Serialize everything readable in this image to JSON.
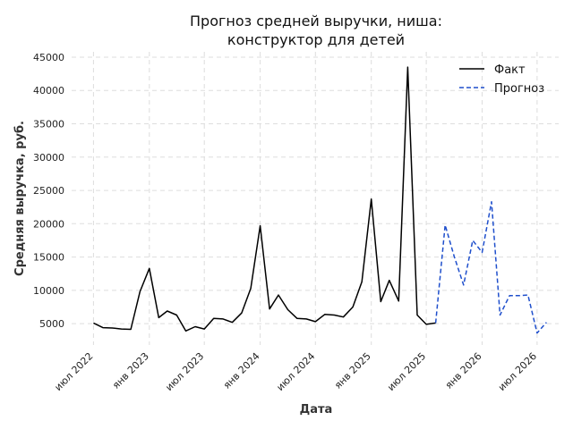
{
  "chart_data": {
    "type": "line",
    "title_line1": "Прогноз средней выручки, ниша:",
    "title_line2": "конструктор для детей",
    "xlabel": "Дата",
    "ylabel": "Средняя выручка, руб.",
    "xlim": [
      "2022-04-20",
      "2026-09-10"
    ],
    "ylim": [
      1800,
      45800
    ],
    "y_ticks": [
      5000,
      10000,
      15000,
      20000,
      25000,
      30000,
      35000,
      40000,
      45000
    ],
    "y_tick_labels": [
      "5000",
      "10000",
      "15000",
      "20000",
      "25000",
      "30000",
      "35000",
      "40000",
      "45000"
    ],
    "x_ticks": [
      {
        "date": "2022-07-01",
        "label": "июл 2022"
      },
      {
        "date": "2023-01-01",
        "label": "янв 2023"
      },
      {
        "date": "2023-07-01",
        "label": "июл 2023"
      },
      {
        "date": "2024-01-01",
        "label": "янв 2024"
      },
      {
        "date": "2024-07-01",
        "label": "июл 2024"
      },
      {
        "date": "2025-01-01",
        "label": "янв 2025"
      },
      {
        "date": "2025-07-01",
        "label": "июл 2025"
      },
      {
        "date": "2026-01-01",
        "label": "янв 2026"
      },
      {
        "date": "2026-07-01",
        "label": "июл 2026"
      }
    ],
    "grid": true,
    "legend_position": "top-right",
    "series": [
      {
        "name": "Факт",
        "color": "#000000",
        "style": "solid",
        "points": [
          [
            "2022-07-01",
            5100
          ],
          [
            "2022-08-01",
            4400
          ],
          [
            "2022-09-01",
            4350
          ],
          [
            "2022-10-01",
            4200
          ],
          [
            "2022-11-01",
            4150
          ],
          [
            "2022-12-01",
            9800
          ],
          [
            "2023-01-01",
            13300
          ],
          [
            "2023-02-01",
            5900
          ],
          [
            "2023-03-01",
            6900
          ],
          [
            "2023-04-01",
            6300
          ],
          [
            "2023-05-01",
            3900
          ],
          [
            "2023-06-01",
            4550
          ],
          [
            "2023-07-01",
            4200
          ],
          [
            "2023-08-01",
            5800
          ],
          [
            "2023-09-01",
            5700
          ],
          [
            "2023-10-01",
            5200
          ],
          [
            "2023-11-01",
            6600
          ],
          [
            "2023-12-01",
            10300
          ],
          [
            "2024-01-01",
            19700
          ],
          [
            "2024-02-01",
            7200
          ],
          [
            "2024-03-01",
            9300
          ],
          [
            "2024-04-01",
            7100
          ],
          [
            "2024-05-01",
            5800
          ],
          [
            "2024-06-01",
            5700
          ],
          [
            "2024-07-01",
            5300
          ],
          [
            "2024-08-01",
            6400
          ],
          [
            "2024-09-01",
            6300
          ],
          [
            "2024-10-01",
            6000
          ],
          [
            "2024-11-01",
            7500
          ],
          [
            "2024-12-01",
            11300
          ],
          [
            "2025-01-01",
            23700
          ],
          [
            "2025-02-01",
            8300
          ],
          [
            "2025-03-01",
            11500
          ],
          [
            "2025-04-01",
            8400
          ],
          [
            "2025-05-01",
            43500
          ],
          [
            "2025-06-01",
            6300
          ],
          [
            "2025-07-01",
            4900
          ],
          [
            "2025-08-01",
            5100
          ]
        ]
      },
      {
        "name": "Прогноз",
        "color": "#1f4fcc",
        "style": "dashed",
        "points": [
          [
            "2025-08-01",
            5100
          ],
          [
            "2025-09-01",
            19800
          ],
          [
            "2025-10-01",
            15100
          ],
          [
            "2025-11-01",
            10800
          ],
          [
            "2025-12-01",
            17500
          ],
          [
            "2026-01-01",
            15700
          ],
          [
            "2026-02-01",
            23300
          ],
          [
            "2026-03-01",
            6300
          ],
          [
            "2026-04-01",
            9200
          ],
          [
            "2026-05-01",
            9200
          ],
          [
            "2026-06-01",
            9300
          ],
          [
            "2026-07-01",
            3600
          ],
          [
            "2026-08-01",
            5200
          ]
        ]
      }
    ]
  }
}
